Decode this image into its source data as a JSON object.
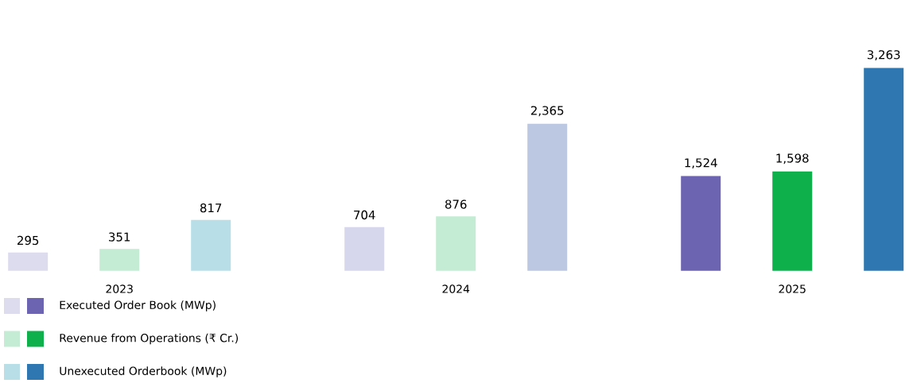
{
  "chart_data": {
    "type": "bar",
    "categories": [
      "2023",
      "2024",
      "2025"
    ],
    "series": [
      {
        "name": "Executed Order Book (MWp)",
        "colors": [
          "#dcdcee",
          "#d6d6ec",
          "#6c64b0"
        ],
        "values": [
          295,
          704,
          1524
        ],
        "value_labels": [
          "295",
          "704",
          "1,524"
        ]
      },
      {
        "name": "Revenue from Operations (₹ Cr.)",
        "colors": [
          "#c4ecd4",
          "#c4ecd4",
          "#0db04b"
        ],
        "values": [
          351,
          876,
          1598
        ],
        "value_labels": [
          "351",
          "876",
          "1,598"
        ]
      },
      {
        "name": "Unexecuted Orderbook (MWp)",
        "colors": [
          "#b8dfe8",
          "#bcc8e2",
          "#2f77b0"
        ],
        "values": [
          817,
          2365,
          3263
        ],
        "value_labels": [
          "817",
          "2,365",
          "3,263"
        ]
      }
    ],
    "legend": "bottom"
  }
}
